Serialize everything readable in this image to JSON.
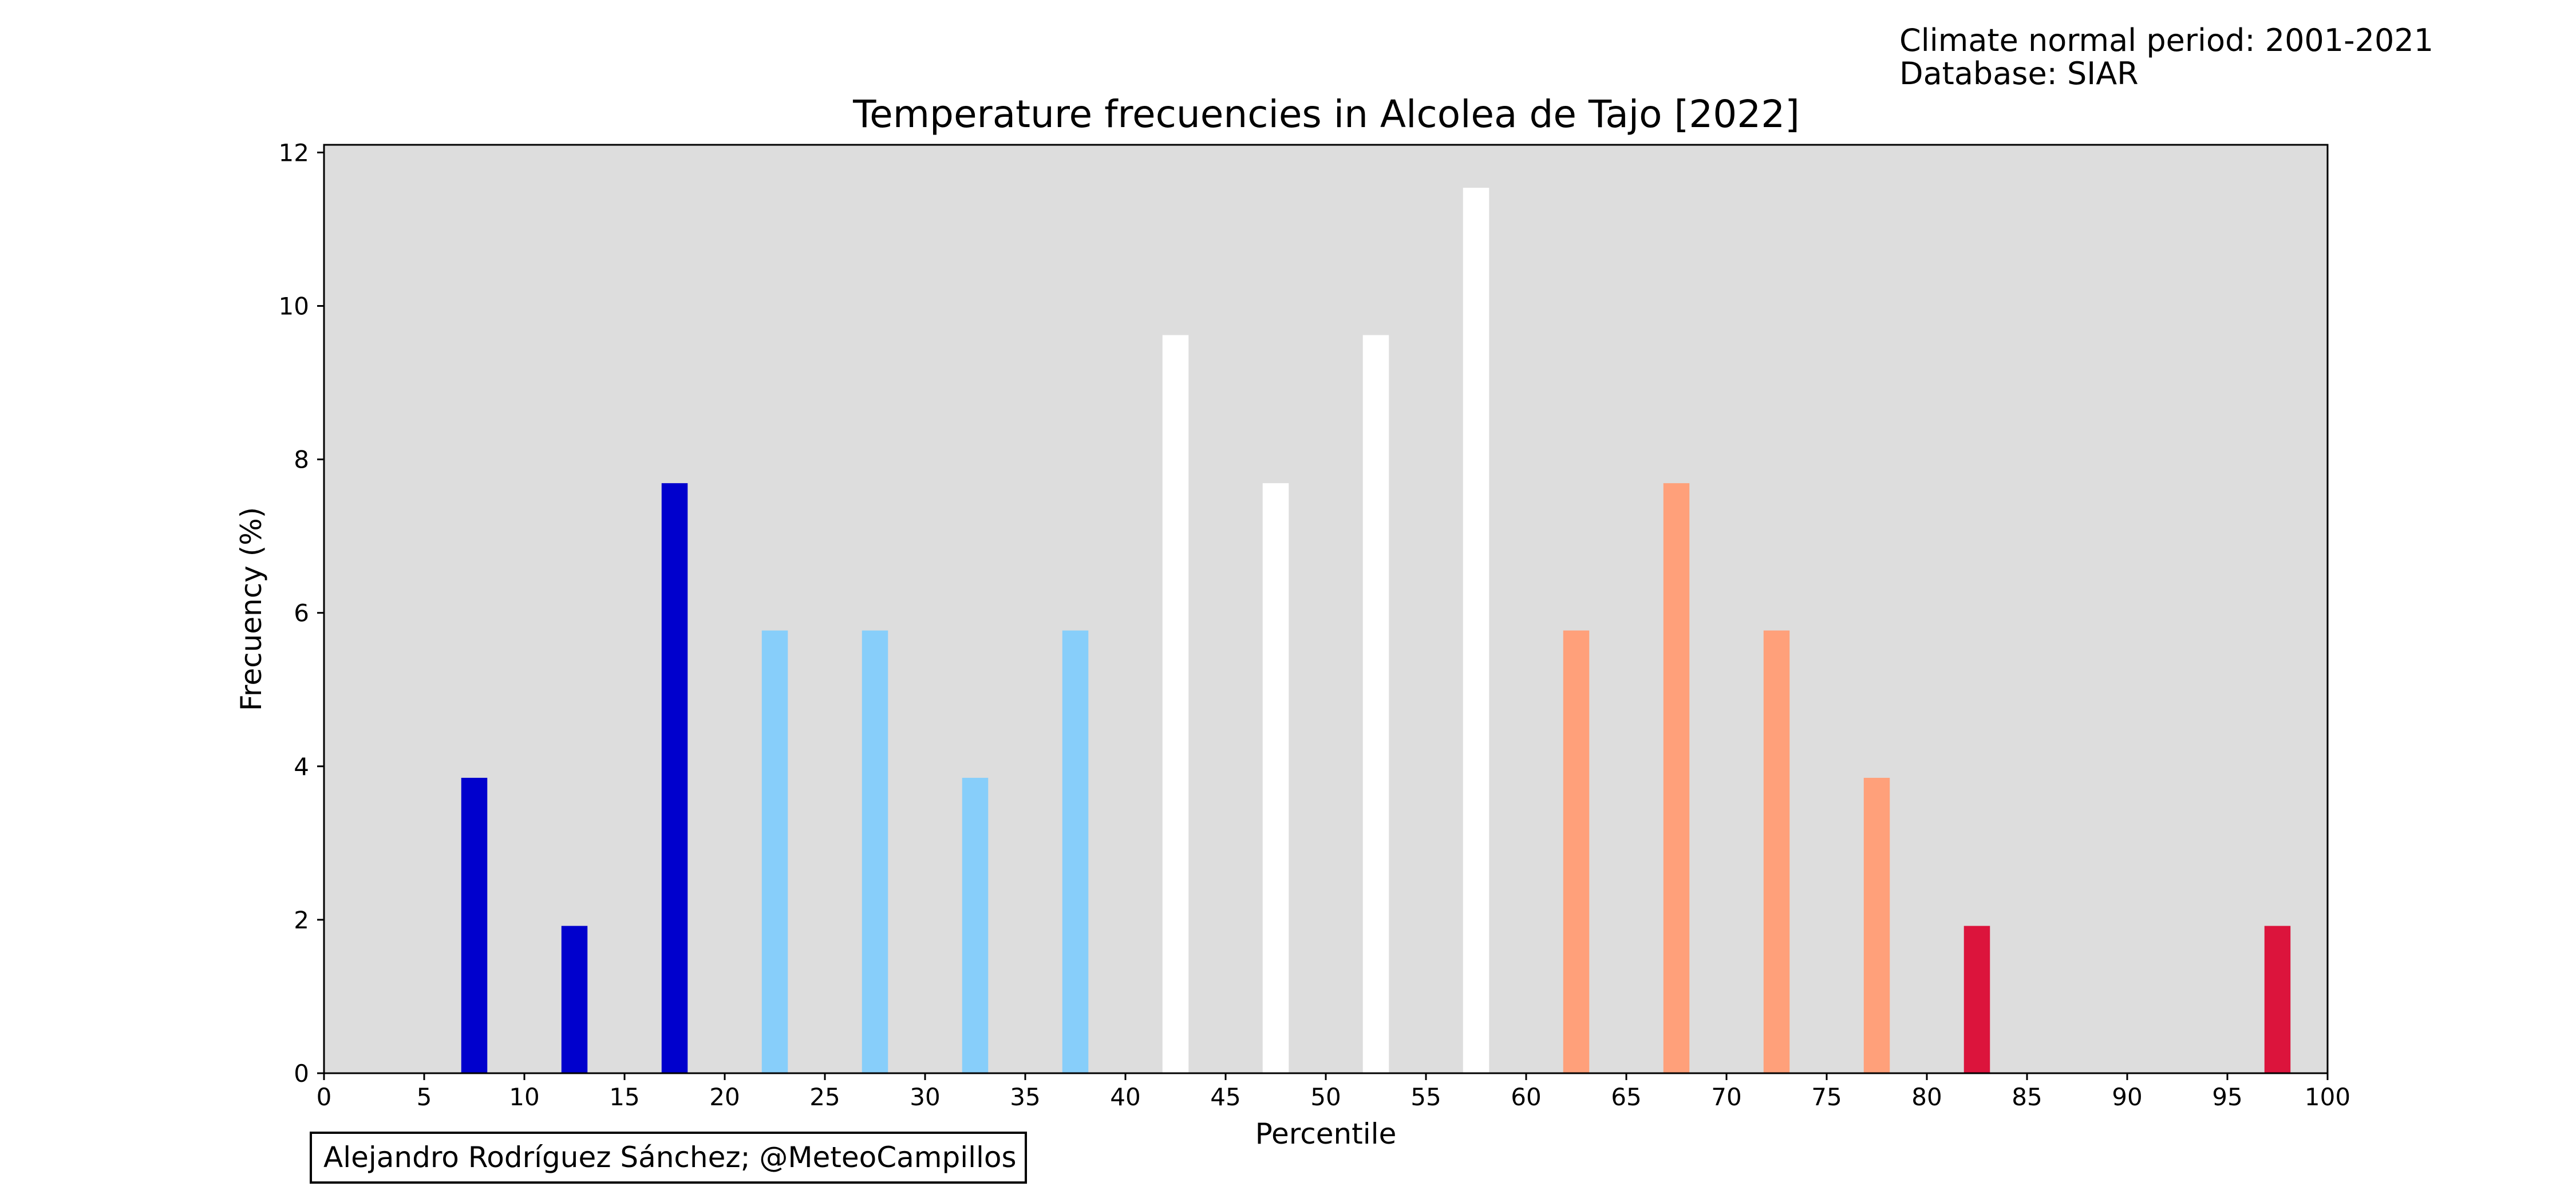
{
  "header": {
    "period": "Climate normal period: 2001-2021",
    "database": "Database: SIAR"
  },
  "credit": "Alejandro Rodríguez Sánchez; @MeteoCampillos",
  "chart_data": {
    "type": "bar",
    "title": "Temperature frecuencies in Alcolea de Tajo [2022]",
    "xlabel": "Percentile",
    "ylabel": "Frecuency (%)",
    "xlim": [
      0,
      100
    ],
    "ylim": [
      0,
      12.1
    ],
    "xticks": [
      0,
      5,
      10,
      15,
      20,
      25,
      30,
      35,
      40,
      45,
      50,
      55,
      60,
      65,
      70,
      75,
      80,
      85,
      90,
      95,
      100
    ],
    "yticks": [
      0,
      2,
      4,
      6,
      8,
      10,
      12
    ],
    "grid": false,
    "background": "#dddddd",
    "bar_width": 1.3,
    "x": [
      7.5,
      12.5,
      17.5,
      22.5,
      27.5,
      32.5,
      37.5,
      42.5,
      47.5,
      52.5,
      57.5,
      62.5,
      67.5,
      72.5,
      77.5,
      82.5,
      97.5
    ],
    "values": [
      3.85,
      1.92,
      7.69,
      5.77,
      5.77,
      3.85,
      5.77,
      9.62,
      7.69,
      9.62,
      11.54,
      5.77,
      7.69,
      5.77,
      3.85,
      1.92,
      1.92
    ],
    "colors": [
      "#0000cd",
      "#0000cd",
      "#0000cd",
      "#87cefa",
      "#87cefa",
      "#87cefa",
      "#87cefa",
      "#ffffff",
      "#ffffff",
      "#ffffff",
      "#ffffff",
      "#ffa07a",
      "#ffa07a",
      "#ffa07a",
      "#ffa07a",
      "#dc143c",
      "#dc143c"
    ]
  }
}
